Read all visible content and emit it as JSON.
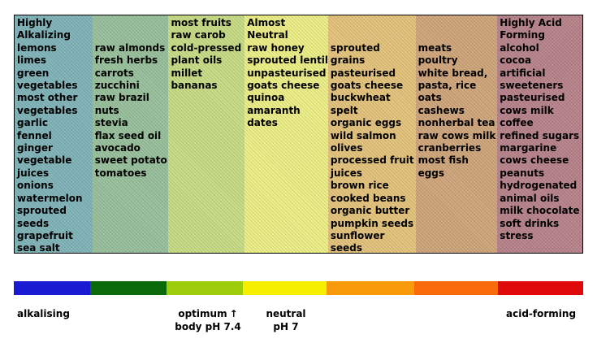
{
  "columns": [
    {
      "color": "#7fb3b8",
      "header": [
        "Highly",
        "Alkalizing"
      ],
      "items": [
        "lemons",
        "limes",
        "green",
        "vegetables",
        "most other",
        "vegetables",
        "garlic",
        "fennel",
        "ginger",
        "vegetable",
        "juices",
        "onions",
        "watermelon",
        "sprouted",
        "seeds",
        "grapefruit",
        "sea salt"
      ]
    },
    {
      "color": "#97c09b",
      "header": [
        "",
        ""
      ],
      "items": [
        "raw almonds",
        "fresh herbs",
        "carrots",
        "zucchini",
        "raw brazil",
        "nuts",
        "stevia",
        "flax seed oil",
        "avocado",
        "sweet potato",
        "tomatoes"
      ]
    },
    {
      "color": "#c6db84",
      "header": [],
      "items": [
        "most fruits",
        "raw carob",
        "cold-pressed",
        "plant oils",
        "millet",
        "bananas"
      ]
    },
    {
      "color": "#ecee85",
      "header": [
        "Almost",
        "Neutral"
      ],
      "items": [
        "raw honey",
        "sprouted lentil",
        "unpasteurised",
        "goats cheese",
        "quinoa",
        "amaranth",
        "dates"
      ]
    },
    {
      "color": "#e3c27a",
      "header": [
        "",
        ""
      ],
      "items": [
        "sprouted",
        "grains",
        "pasteurised",
        "goats cheese",
        "buckwheat",
        "spelt",
        "organic eggs",
        "wild salmon",
        "olives",
        "processed fruit",
        "juices",
        "brown rice",
        "cooked beans",
        "organic butter",
        "pumpkin seeds",
        "sunflower",
        "seeds"
      ]
    },
    {
      "color": "#cfa57a",
      "header": [
        "",
        ""
      ],
      "items": [
        "meats",
        "poultry",
        "white bread,",
        "pasta, rice",
        "oats",
        "cashews",
        "nonherbal tea",
        "raw cows milk",
        "cranberries",
        "most fish",
        "eggs"
      ]
    },
    {
      "color": "#b7828a",
      "header": [
        "Highly Acid",
        "Forming"
      ],
      "items": [
        "alcohol",
        "cocoa",
        "artificial",
        "sweeteners",
        "pasteurised",
        "cows milk",
        "coffee",
        "refined sugars",
        "margarine",
        "cows cheese",
        "peanuts",
        "hydrogenated",
        "animal oils",
        "milk chocolate",
        "soft drinks",
        "stress"
      ]
    }
  ],
  "scale": {
    "segments": [
      "#1a1ad2",
      "#0a6a0a",
      "#9ccc0a",
      "#f6f000",
      "#f89a0a",
      "#f86a0a",
      "#e00a0a"
    ]
  },
  "labels": {
    "alkalising": "alkalising",
    "optimum_line1": "optimum",
    "optimum_arrow": "↑",
    "optimum_line2": "body pH 7.4",
    "neutral_line1": "neutral",
    "neutral_line2": "pH 7",
    "acid": "acid-forming"
  }
}
